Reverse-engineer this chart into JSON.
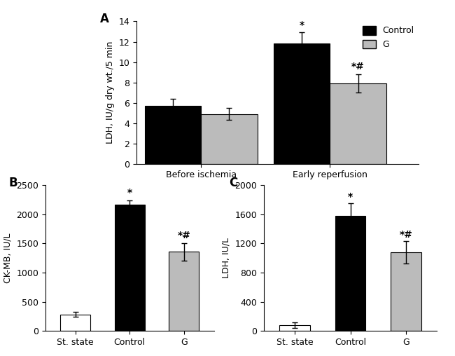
{
  "panel_A": {
    "groups": [
      "Before ischemia",
      "Early reperfusion"
    ],
    "control_values": [
      5.7,
      11.8
    ],
    "control_errors": [
      0.7,
      1.1
    ],
    "g_values": [
      4.9,
      7.9
    ],
    "g_errors": [
      0.6,
      0.9
    ],
    "ylabel": "LDH, IU/g dry wt./5 min",
    "ylim": [
      0,
      14
    ],
    "yticks": [
      0,
      2,
      4,
      6,
      8,
      10,
      12,
      14
    ],
    "annotations_control": [
      "",
      "*"
    ],
    "annotations_g": [
      "",
      "*#"
    ],
    "label": "A"
  },
  "panel_B": {
    "categories": [
      "St. state",
      "Control",
      "G"
    ],
    "values": [
      285,
      2170,
      1360
    ],
    "errors": [
      40,
      70,
      150
    ],
    "colors": [
      "#ffffff",
      "#000000",
      "#bbbbbb"
    ],
    "ylabel": "CK-MB, IU/L",
    "ylim": [
      0,
      2500
    ],
    "yticks": [
      0,
      500,
      1000,
      1500,
      2000,
      2500
    ],
    "annotations": [
      "",
      "*",
      "*#"
    ],
    "label": "B"
  },
  "panel_C": {
    "categories": [
      "St. state",
      "Control",
      "G"
    ],
    "values": [
      80,
      1580,
      1080
    ],
    "errors": [
      40,
      170,
      150
    ],
    "colors": [
      "#ffffff",
      "#000000",
      "#bbbbbb"
    ],
    "ylabel": "LDH, IU/L",
    "ylim": [
      0,
      2000
    ],
    "yticks": [
      0,
      400,
      800,
      1200,
      1600,
      2000
    ],
    "annotations": [
      "",
      "*",
      "*#"
    ],
    "label": "C"
  },
  "legend_control_color": "#000000",
  "legend_g_color": "#bbbbbb",
  "bar_width": 0.35,
  "control_color": "#000000",
  "g_color": "#bbbbbb",
  "font_size": 9,
  "annot_font_size": 10,
  "label_fontsize": 12
}
